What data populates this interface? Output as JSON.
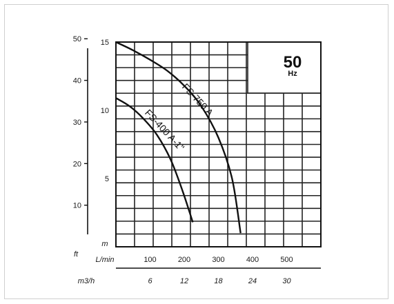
{
  "chart_data": {
    "type": "line",
    "frequency": {
      "value": "50",
      "unit": "Hz"
    },
    "x": {
      "unit": "L/min",
      "range": [
        0,
        600
      ],
      "ticks": [
        100,
        200,
        300,
        400,
        500
      ]
    },
    "x2": {
      "unit": "m3/h",
      "ticks": [
        6,
        12,
        18,
        24,
        30
      ]
    },
    "y": {
      "unit": "m",
      "range": [
        0,
        15
      ],
      "ticks": [
        5,
        10,
        15
      ]
    },
    "y2": {
      "unit": "ft",
      "ticks": [
        10,
        20,
        30,
        40,
        50
      ]
    },
    "grid": true,
    "series": [
      {
        "name": "FS-750 A",
        "points": [
          [
            0,
            15.0
          ],
          [
            50,
            14.4
          ],
          [
            100,
            13.7
          ],
          [
            150,
            12.9
          ],
          [
            200,
            11.8
          ],
          [
            250,
            10.3
          ],
          [
            300,
            8.0
          ],
          [
            340,
            5.0
          ],
          [
            365,
            1.0
          ]
        ]
      },
      {
        "name": "FS-400 A-1\"",
        "points": [
          [
            0,
            10.9
          ],
          [
            40,
            10.3
          ],
          [
            80,
            9.4
          ],
          [
            120,
            8.2
          ],
          [
            160,
            6.4
          ],
          [
            195,
            4.1
          ],
          [
            225,
            1.8
          ]
        ]
      }
    ]
  }
}
